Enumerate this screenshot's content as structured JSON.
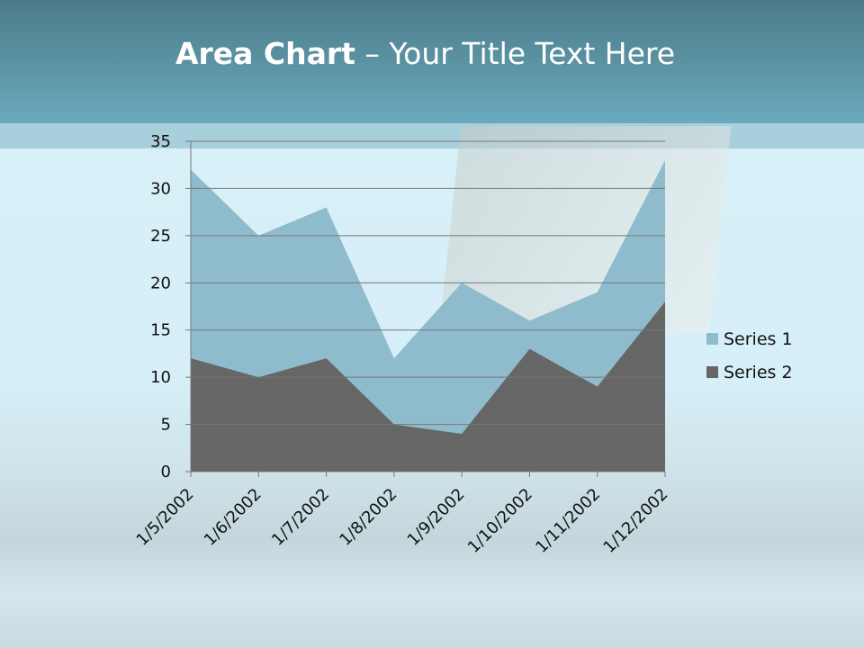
{
  "title": {
    "bold": "Area Chart",
    "rest": " – Your Title Text Here"
  },
  "chart_data": {
    "type": "area",
    "title": "Area Chart – Your Title Text Here",
    "categories": [
      "1/5/2002",
      "1/6/2002",
      "1/7/2002",
      "1/8/2002",
      "1/9/2002",
      "1/10/2002",
      "1/11/2002",
      "1/12/2002"
    ],
    "series": [
      {
        "name": "Series 1",
        "values": [
          32,
          25,
          28,
          12,
          20,
          16,
          19,
          33
        ],
        "color": "#8fbccc"
      },
      {
        "name": "Series 2",
        "values": [
          12,
          10,
          12,
          5,
          4,
          13,
          9,
          18
        ],
        "color": "#666666"
      }
    ],
    "ylim": [
      0,
      35
    ],
    "yticks": [
      0,
      5,
      10,
      15,
      20,
      25,
      30,
      35
    ],
    "grid": true,
    "legend": "right"
  }
}
